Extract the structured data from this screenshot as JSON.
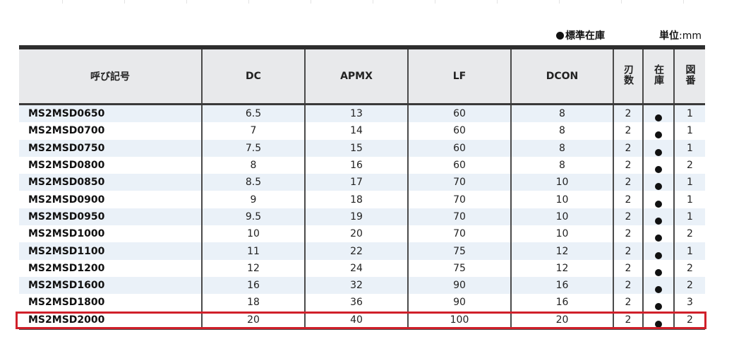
{
  "legend": {
    "standard_stock": "標準在庫",
    "unit_label": "単位",
    "unit_value": ":mm"
  },
  "columns": [
    "呼び記号",
    "DC",
    "APMX",
    "LF",
    "DCON",
    "刃数",
    "在庫",
    "図番"
  ],
  "rows": [
    {
      "code": "MS2MSD0650",
      "dc": "6.5",
      "apmx": "13",
      "lf": "60",
      "dcon": "8",
      "flutes": "2",
      "stock": "●",
      "fig": "1"
    },
    {
      "code": "MS2MSD0700",
      "dc": "7",
      "apmx": "14",
      "lf": "60",
      "dcon": "8",
      "flutes": "2",
      "stock": "●",
      "fig": "1"
    },
    {
      "code": "MS2MSD0750",
      "dc": "7.5",
      "apmx": "15",
      "lf": "60",
      "dcon": "8",
      "flutes": "2",
      "stock": "●",
      "fig": "1"
    },
    {
      "code": "MS2MSD0800",
      "dc": "8",
      "apmx": "16",
      "lf": "60",
      "dcon": "8",
      "flutes": "2",
      "stock": "●",
      "fig": "2"
    },
    {
      "code": "MS2MSD0850",
      "dc": "8.5",
      "apmx": "17",
      "lf": "70",
      "dcon": "10",
      "flutes": "2",
      "stock": "●",
      "fig": "1"
    },
    {
      "code": "MS2MSD0900",
      "dc": "9",
      "apmx": "18",
      "lf": "70",
      "dcon": "10",
      "flutes": "2",
      "stock": "●",
      "fig": "1"
    },
    {
      "code": "MS2MSD0950",
      "dc": "9.5",
      "apmx": "19",
      "lf": "70",
      "dcon": "10",
      "flutes": "2",
      "stock": "●",
      "fig": "1"
    },
    {
      "code": "MS2MSD1000",
      "dc": "10",
      "apmx": "20",
      "lf": "70",
      "dcon": "10",
      "flutes": "2",
      "stock": "●",
      "fig": "2"
    },
    {
      "code": "MS2MSD1100",
      "dc": "11",
      "apmx": "22",
      "lf": "75",
      "dcon": "12",
      "flutes": "2",
      "stock": "●",
      "fig": "1"
    },
    {
      "code": "MS2MSD1200",
      "dc": "12",
      "apmx": "24",
      "lf": "75",
      "dcon": "12",
      "flutes": "2",
      "stock": "●",
      "fig": "2"
    },
    {
      "code": "MS2MSD1600",
      "dc": "16",
      "apmx": "32",
      "lf": "90",
      "dcon": "16",
      "flutes": "2",
      "stock": "●",
      "fig": "2"
    },
    {
      "code": "MS2MSD1800",
      "dc": "18",
      "apmx": "36",
      "lf": "90",
      "dcon": "16",
      "flutes": "2",
      "stock": "●",
      "fig": "3"
    },
    {
      "code": "MS2MSD2000",
      "dc": "20",
      "apmx": "40",
      "lf": "100",
      "dcon": "20",
      "flutes": "2",
      "stock": "●",
      "fig": "2"
    }
  ],
  "colors": {
    "highlight_border": "#d0202a",
    "row_stripe": "#eaf1f8",
    "header_bg": "#e8e9eb"
  },
  "highlighted_row": "MS2MSD2000"
}
